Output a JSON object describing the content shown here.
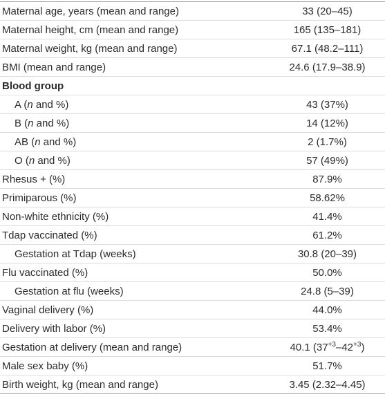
{
  "table": {
    "rows": [
      {
        "label": "Maternal age, years (mean and range)",
        "value": "33 (20–45)"
      },
      {
        "label": "Maternal height, cm (mean and range)",
        "value": "165 (135–181)"
      },
      {
        "label": "Maternal weight, kg (mean and range)",
        "value": "67.1 (48.2–111)"
      },
      {
        "label": "BMI (mean and range)",
        "value": "24.6 (17.9–38.9)"
      },
      {
        "label": "Blood group",
        "rows": [
          {
            "label": [
              "A (",
              "n",
              " and %)"
            ],
            "value": "43 (37%)"
          },
          {
            "label": [
              "B (",
              "n",
              " and %)"
            ],
            "value": "14 (12%)"
          },
          {
            "label": [
              "AB (",
              "n",
              " and %)"
            ],
            "value": "2 (1.7%)"
          },
          {
            "label": [
              "O (",
              "n",
              " and %)"
            ],
            "value": "57 (49%)"
          }
        ]
      },
      {
        "label": "Rhesus + (%)",
        "value": "87.9%"
      },
      {
        "label": "Primiparous (%)",
        "value": "58.62%"
      },
      {
        "label": "Non-white ethnicity (%)",
        "value": "41.4%"
      },
      {
        "label": "Tdap vaccinated (%)",
        "value": "61.2%",
        "rows": [
          {
            "label": "Gestation at Tdap (weeks)",
            "value": "30.8 (20–39)"
          }
        ]
      },
      {
        "label": "Flu vaccinated (%)",
        "value": "50.0%",
        "rows": [
          {
            "label": "Gestation at flu (weeks)",
            "value": "24.8 (5–39)"
          }
        ]
      },
      {
        "label": "Vaginal delivery (%)",
        "value": "44.0%"
      },
      {
        "label": "Delivery with labor (%)",
        "value": "53.4%"
      },
      {
        "label": "Gestation at delivery (mean and range)",
        "value": [
          "40.1 (37",
          "+3",
          "–42",
          "+3",
          ")"
        ]
      },
      {
        "label": "Male sex baby (%)",
        "value": "51.7%"
      },
      {
        "label": "Birth weight, kg (mean and range)",
        "value": "3.45 (2.32–4.45)"
      }
    ]
  }
}
